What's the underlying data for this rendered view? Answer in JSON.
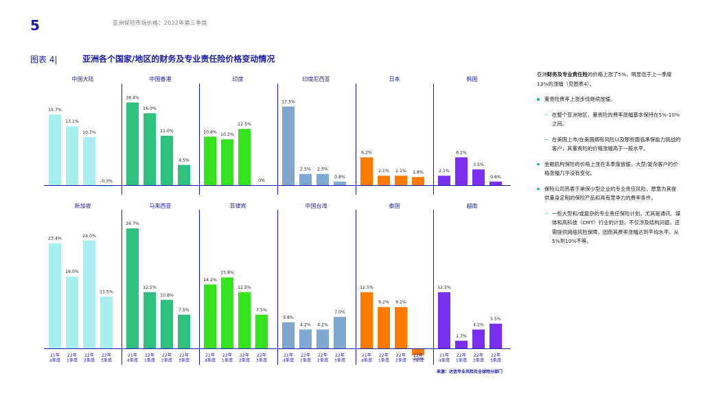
{
  "header": {
    "page_number": "5",
    "running_title": "亚洲保险市场价格：2022年第三季度"
  },
  "figure": {
    "label": "图表 4|",
    "title": "亚洲各个国家/地区的财务及专业责任险价格变动情况"
  },
  "chart_data": {
    "type": "bar",
    "ylim": [
      -2,
      30
    ],
    "categories": [
      [
        "21年",
        "4季度"
      ],
      [
        "22年",
        "1季度"
      ],
      [
        "22年",
        "2季度"
      ],
      [
        "22年",
        "3季度"
      ]
    ],
    "panels": [
      {
        "title": "中国大陆",
        "color": "#a8f0f0",
        "values": [
          15.7,
          13.1,
          10.7,
          -0.3
        ],
        "labels": [
          "15.7%",
          "13.1%",
          "10.7%",
          "-0.3%"
        ]
      },
      {
        "title": "中国香港",
        "color": "#2fbf7f",
        "values": [
          18.4,
          16.0,
          11.0,
          4.5
        ],
        "labels": [
          "18.4%",
          "16.0%",
          "11.0%",
          "4.5%"
        ]
      },
      {
        "title": "印度",
        "color": "#36e21e",
        "values": [
          10.8,
          10.2,
          12.5,
          0
        ],
        "labels": [
          "10.8%",
          "10.2%",
          "12.5%",
          "0%"
        ]
      },
      {
        "title": "印度尼西亚",
        "color": "#7fa7cf",
        "values": [
          17.5,
          2.5,
          2.5,
          0.8
        ],
        "labels": [
          "17.5%",
          "2.5%",
          "2.5%",
          "0.8%"
        ]
      },
      {
        "title": "日本",
        "color": "#ff7a00",
        "values": [
          6.2,
          2.1,
          2.1,
          1.8
        ],
        "labels": [
          "6.2%",
          "2.1%",
          "2.1%",
          "1.8%"
        ]
      },
      {
        "title": "韩国",
        "color": "#7a2ff0",
        "values": [
          2.1,
          6.2,
          3.5,
          0.8
        ],
        "labels": [
          "2.1%",
          "6.2%",
          "3.5%",
          "0.8%"
        ]
      },
      {
        "title": "新加坡",
        "color": "#a8f0f0",
        "values": [
          23.4,
          16.0,
          24.0,
          11.5
        ],
        "labels": [
          "23.4%",
          "16.0%",
          "24.0%",
          "11.5%"
        ]
      },
      {
        "title": "马来西亚",
        "color": "#2fbf7f",
        "values": [
          26.7,
          12.5,
          10.8,
          7.5
        ],
        "labels": [
          "26.7%",
          "12.5%",
          "10.8%",
          "7.5%"
        ]
      },
      {
        "title": "菲律宾",
        "color": "#36e21e",
        "values": [
          14.2,
          15.8,
          12.5,
          7.5
        ],
        "labels": [
          "14.2%",
          "15.8%",
          "12.5%",
          "7.5%"
        ]
      },
      {
        "title": "中国台湾",
        "color": "#7fa7cf",
        "values": [
          5.8,
          4.2,
          4.2,
          7.0
        ],
        "labels": [
          "5.8%",
          "4.2%",
          "4.2%",
          "7.0%"
        ]
      },
      {
        "title": "泰国",
        "color": "#ff7a00",
        "values": [
          12.5,
          9.2,
          9.2,
          -1.5
        ],
        "labels": [
          "12.5%",
          "9.2%",
          "9.2%",
          "-1.5%"
        ]
      },
      {
        "title": "越南",
        "color": "#7a2ff0",
        "values": [
          12.5,
          1.7,
          4.2,
          5.5
        ],
        "labels": [
          "12.5%",
          "1.7%",
          "4.2%",
          "5.5%"
        ]
      }
    ]
  },
  "source": "来源：达信专业风险及全球特分部门",
  "commentary": {
    "intro_pre": "亚洲",
    "intro_highlight": "财务及专业责任险",
    "intro_post": "的价格上涨了5%，明显低于上一季度13%的涨幅（见图表4）。",
    "bullet1": "董责险费率上涨步伐继续放缓。",
    "sub1a": "在整个亚洲地区，董责险的费率涨幅基本保持在5%-10%之间。",
    "sub1b": "在美国上市/在美国拥有风险以及那些面临承保能力挑战的客户，其董责险的价格涨幅高于一般水平。",
    "bullet2": "金融机构保险的价格上涨在本季度放缓，大型/复杂客户的价格涨幅几乎没有变化。",
    "bullet3": "保险公司热衷于承保小型企业的专业责任风险，愿意为其提供量身定制的保险产品和具有竞争力的费率条件。",
    "sub3a": "一些大型和/或复杂的专业责任保险计划，尤其是通讯、媒体和高科技（CMT）行业的计划，不仅涉及结构问题，还需提供网络风险保障，因而其费率涨幅达到平均水平，从5%到10%不等。",
    "dash": "−"
  }
}
